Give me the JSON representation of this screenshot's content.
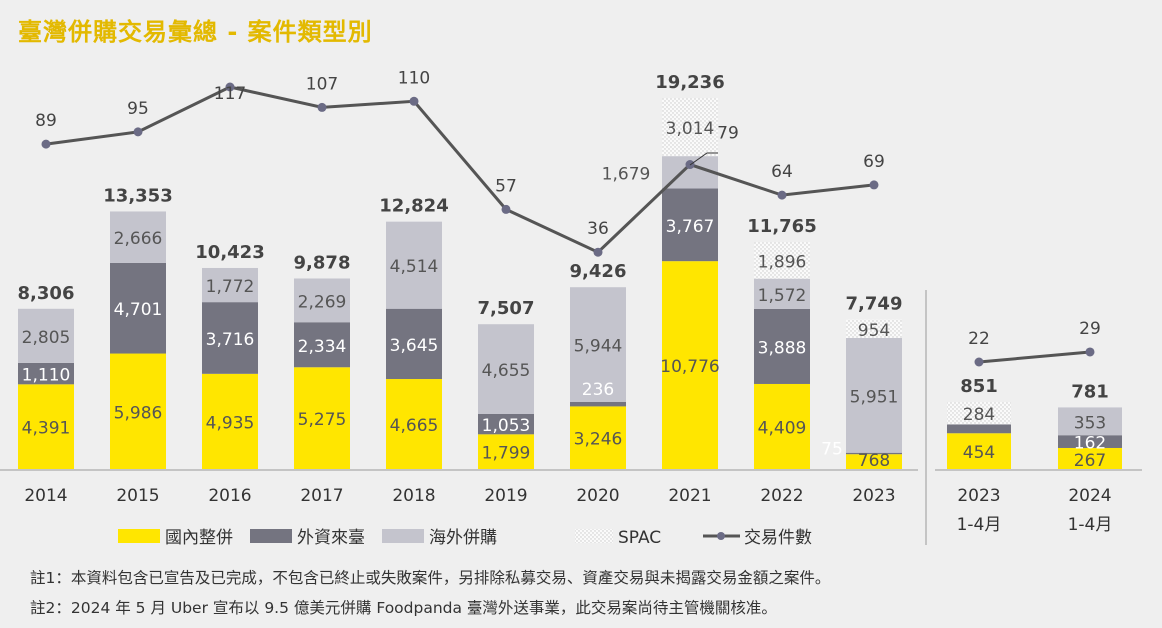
{
  "title": "臺灣併購交易彙總 - 案件類型別",
  "notes": [
    "註1：本資料包含已宣告及已完成，不包含已終止或失敗案件，另排除私募交易、資產交易與未揭露交易金額之案件。",
    "註2：2024 年 5 月 Uber 宣布以 9.5 億美元併購 Foodpanda 臺灣外送事業，此交易案尚待主管機關核准。"
  ],
  "colors": {
    "domestic": "#FFE600",
    "inbound": "#747480",
    "outbound": "#C4C4CD",
    "spac": "#FFFFFF",
    "line": "#555555",
    "marker": "#6b6b85",
    "title": "#E3B900"
  },
  "chart_data": [
    {
      "type": "bar",
      "stacked": true,
      "categories": [
        "2014",
        "2015",
        "2016",
        "2017",
        "2018",
        "2019",
        "2020",
        "2021",
        "2022",
        "2023"
      ],
      "series": [
        {
          "name": "國內整併",
          "values": [
            4391,
            5986,
            4935,
            5275,
            4665,
            1799,
            3246,
            10776,
            4409,
            768
          ]
        },
        {
          "name": "外資來臺",
          "values": [
            1110,
            4701,
            3716,
            2334,
            3645,
            1053,
            236,
            3767,
            3888,
            75
          ]
        },
        {
          "name": "海外併購",
          "values": [
            2805,
            2666,
            1772,
            2269,
            4514,
            4655,
            5944,
            1679,
            1572,
            5951
          ]
        },
        {
          "name": "SPAC",
          "values": [
            0,
            0,
            0,
            0,
            0,
            0,
            0,
            3014,
            1896,
            954
          ]
        }
      ],
      "totals": [
        "8,306",
        "13,353",
        "10,423",
        "9,878",
        "12,824",
        "7,507",
        "9,426",
        "19,236",
        "11,765",
        "7,749"
      ],
      "line": {
        "name": "交易件數",
        "values": [
          89,
          95,
          117,
          107,
          110,
          57,
          36,
          79,
          64,
          69
        ]
      },
      "grid": false,
      "legend": "bottom"
    },
    {
      "type": "bar",
      "stacked": true,
      "categories": [
        [
          "2023",
          "1-4月"
        ],
        [
          "2024",
          "1-4月"
        ]
      ],
      "series": [
        {
          "name": "國內整併",
          "values": [
            454,
            267
          ]
        },
        {
          "name": "外資來臺",
          "values": [
            113,
            162
          ]
        },
        {
          "name": "海外併購",
          "values": [
            0,
            353
          ]
        },
        {
          "name": "SPAC",
          "values": [
            284,
            0
          ]
        }
      ],
      "labels_shown": [
        [
          "454",
          null,
          null,
          "284"
        ],
        [
          "267",
          "162",
          "353",
          null
        ]
      ],
      "totals": [
        "851",
        "781"
      ],
      "line": {
        "name": "交易件數",
        "values": [
          22,
          29
        ]
      }
    }
  ]
}
